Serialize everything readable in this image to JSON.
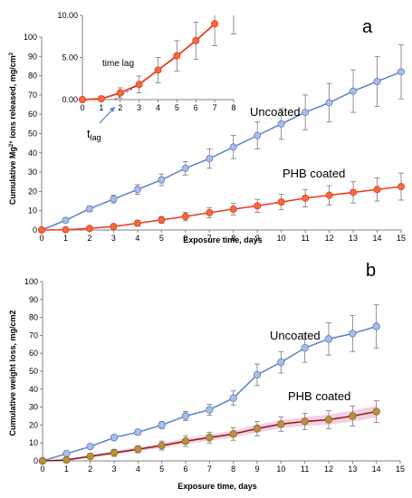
{
  "colors": {
    "uncoated": "#5b7fc4",
    "uncoated_marker": "#a9bde6",
    "coated_a": "#e8391c",
    "coated_a_marker": "#f26a3f",
    "coated_b_line": "#8b1a10",
    "coated_b_marker": "#b8913a",
    "coated_b_band": "#f2c6de",
    "errorbar": "#777777",
    "axis": "#808080"
  },
  "chart_data": [
    {
      "id": "a",
      "type": "line",
      "panel_letter": "a",
      "xlabel": "Exposure time, days",
      "ylabel": "Cumulative Mg²⁺ ions released, mg/cm²",
      "ylabel_parts": {
        "pre": "Cumulative Mg",
        "sup": "2+",
        "post": " ions released, mg/cm",
        "sup2": "2"
      },
      "x": [
        0,
        1,
        2,
        3,
        4,
        5,
        6,
        7,
        8,
        9,
        10,
        11,
        12,
        13,
        14,
        15
      ],
      "xlim": [
        0,
        15
      ],
      "ylim": [
        0,
        100
      ],
      "xticks": [
        0,
        1,
        2,
        3,
        4,
        5,
        6,
        7,
        8,
        9,
        10,
        11,
        12,
        13,
        14,
        15
      ],
      "yticks": [
        0,
        10,
        20,
        30,
        40,
        50,
        60,
        70,
        80,
        90,
        100
      ],
      "grid": false,
      "series": [
        {
          "name": "Uncoated",
          "values": [
            0,
            5,
            11,
            16,
            21,
            26,
            32,
            37,
            43,
            49,
            55,
            61,
            66,
            72,
            77,
            82
          ],
          "errors": [
            0,
            1,
            1.5,
            2,
            2.5,
            3,
            3.5,
            5,
            6,
            7,
            8,
            9,
            10,
            11,
            13,
            14
          ]
        },
        {
          "name": "PHB coated",
          "values": [
            0,
            0.1,
            0.8,
            1.8,
            3.5,
            5.2,
            7,
            9,
            10.8,
            12.5,
            14.5,
            16.5,
            18,
            19.5,
            21,
            22.5
          ],
          "errors": [
            0,
            0.3,
            0.6,
            1,
            1.5,
            1.8,
            2.2,
            2.6,
            3,
            3.4,
            4,
            4.5,
            5,
            5.5,
            6,
            7
          ]
        }
      ],
      "inset": {
        "type": "line",
        "xlim": [
          0,
          8
        ],
        "ylim": [
          0,
          10
        ],
        "xticks": [
          0,
          1,
          2,
          3,
          4,
          5,
          6,
          7,
          8
        ],
        "yticks": [
          0,
          5,
          10
        ],
        "ytick_labels": [
          "0.00",
          "5.00",
          "10.00"
        ],
        "x": [
          0,
          1,
          2,
          3,
          4,
          5,
          6,
          7,
          8
        ],
        "values": [
          0,
          0.1,
          0.8,
          1.8,
          3.5,
          5.2,
          7,
          9,
          10.8
        ],
        "errors": [
          0,
          0.3,
          0.6,
          1,
          1.5,
          1.8,
          2.2,
          2.6,
          3
        ],
        "lag_line": {
          "x": [
            1.7,
            3
          ],
          "y": [
            0,
            1.8
          ]
        },
        "annotation": "time lag",
        "t_lag_label": "t",
        "t_lag_sub": "lag"
      }
    },
    {
      "id": "b",
      "type": "line",
      "panel_letter": "b",
      "xlabel": "Exposure time, days",
      "ylabel": "Cumulative weight loss, mg/cm2",
      "x": [
        0,
        1,
        2,
        3,
        4,
        5,
        6,
        7,
        8,
        9,
        10,
        11,
        12,
        13,
        14
      ],
      "xlim": [
        0,
        15
      ],
      "ylim": [
        0,
        100
      ],
      "xticks": [
        0,
        1,
        2,
        3,
        4,
        5,
        6,
        7,
        8,
        9,
        10,
        11,
        12,
        13,
        14,
        15
      ],
      "yticks": [
        0,
        10,
        20,
        30,
        40,
        50,
        60,
        70,
        80,
        90,
        100
      ],
      "grid": false,
      "series": [
        {
          "name": "Uncoated",
          "values": [
            0,
            4,
            8,
            13,
            16,
            20,
            25,
            28.5,
            35,
            48,
            55,
            63,
            68,
            71,
            75
          ],
          "errors": [
            0,
            1,
            1,
            1.5,
            1.5,
            2,
            2.5,
            3,
            4,
            6,
            6,
            8,
            9,
            10,
            12
          ]
        },
        {
          "name": "PHB coated",
          "values": [
            0,
            0.5,
            2.5,
            4.5,
            6.5,
            8.5,
            11,
            13,
            15,
            18,
            20.5,
            22,
            23,
            25,
            27.5
          ],
          "errors": [
            0,
            1,
            1.5,
            2,
            2,
            2.5,
            3,
            3,
            3.5,
            4,
            4,
            4.5,
            5,
            5.5,
            6
          ]
        }
      ]
    }
  ]
}
